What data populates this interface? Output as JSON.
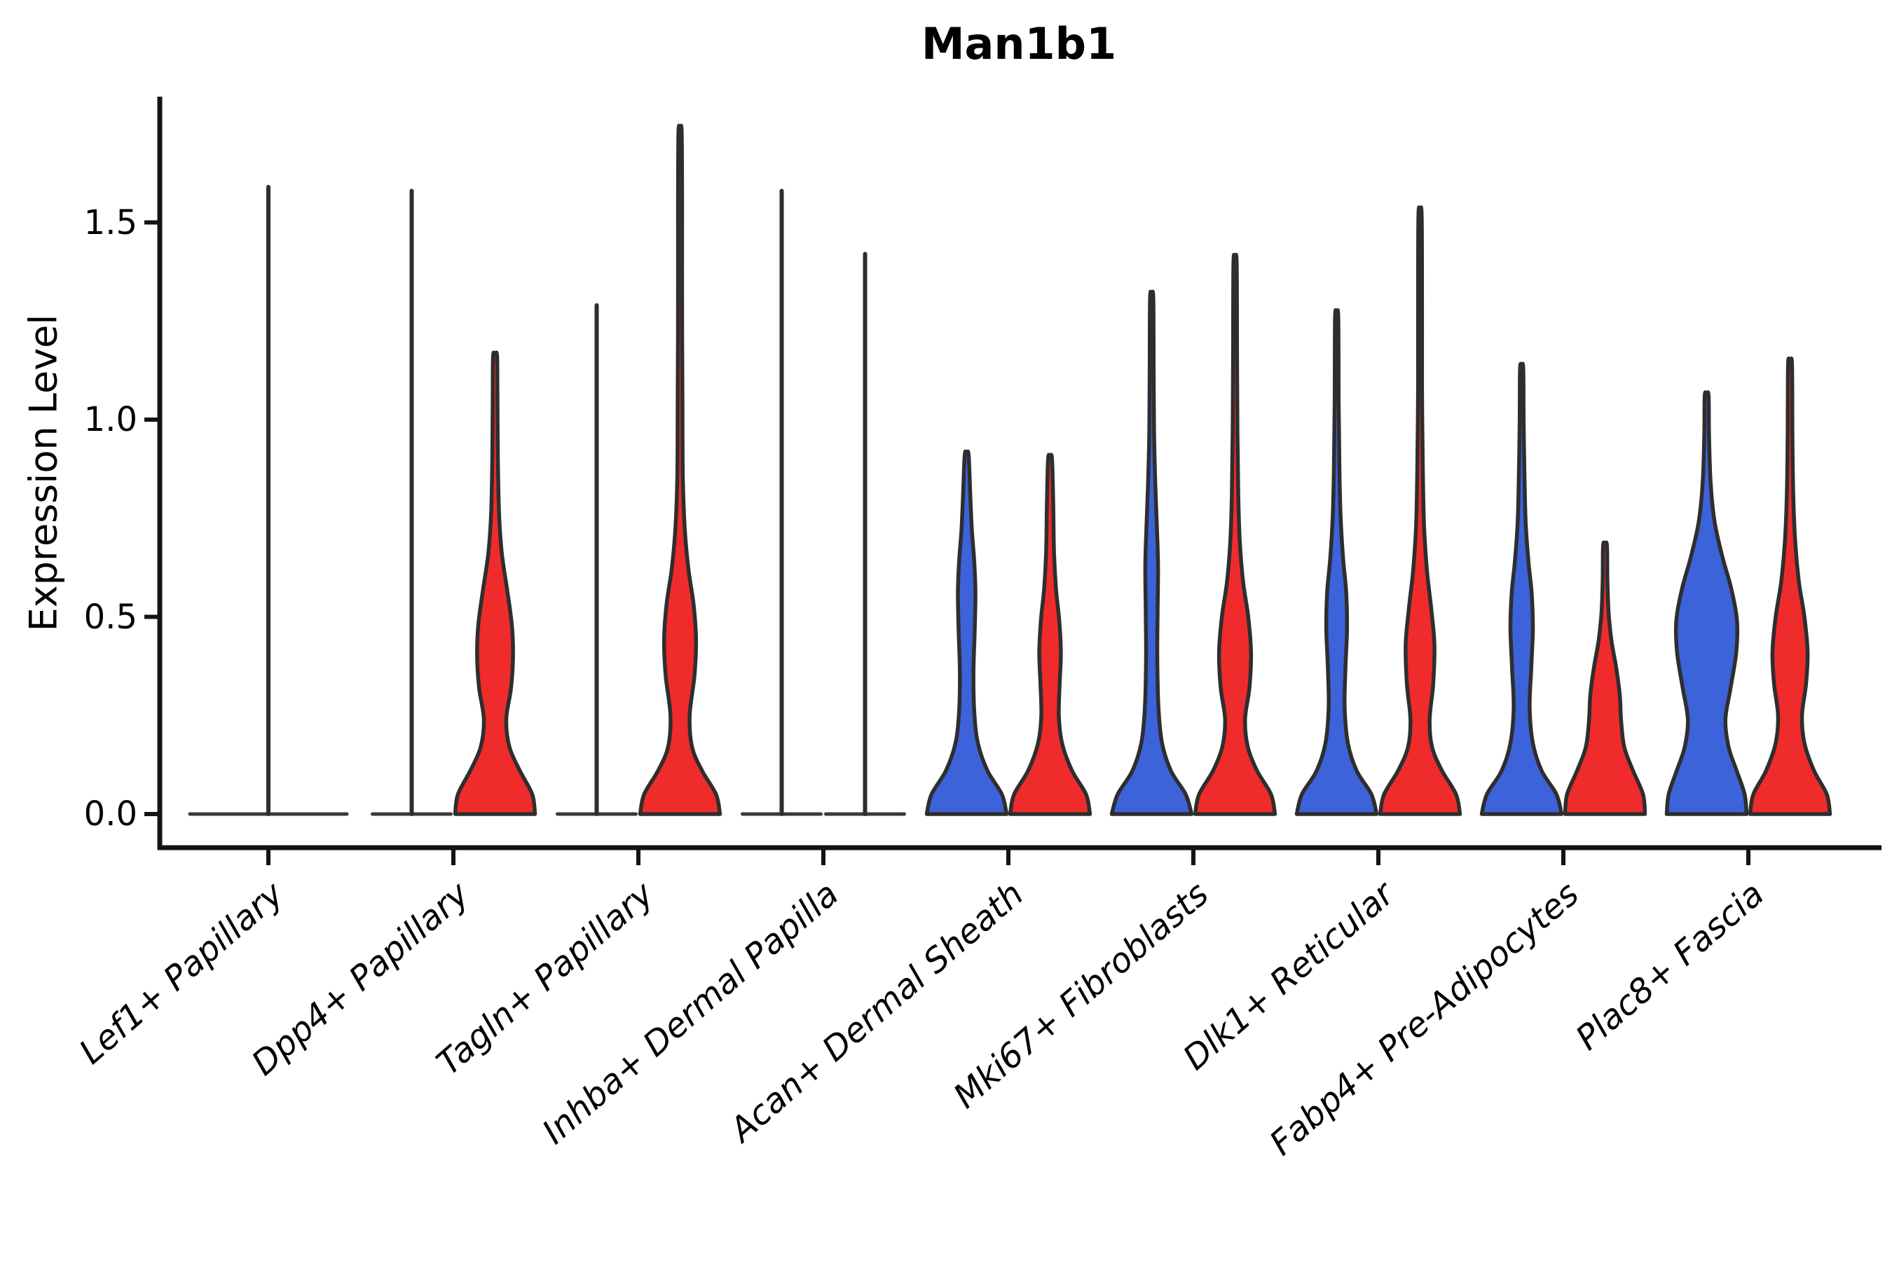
{
  "chart_data": {
    "type": "violin",
    "title": "Man1b1",
    "ylabel": "Expression Level",
    "xlabel": "",
    "yticks": [
      {
        "value": 0.0,
        "label": "0.0"
      },
      {
        "value": 0.5,
        "label": "0.5"
      },
      {
        "value": 1.0,
        "label": "1.0"
      },
      {
        "value": 1.5,
        "label": "1.5"
      }
    ],
    "ylim": [
      -0.09,
      1.82
    ],
    "grid": false,
    "legend": null,
    "xticklabel_rotation_deg": 41,
    "xticklabel_style": "italic",
    "colors": {
      "blue_fill": "#3D63DB",
      "red_fill": "#F02B2B",
      "violin_outline": "#2E2E2E",
      "collapsed_line": "#3A3A3A",
      "axis": "#141414",
      "text": "#000000",
      "background": "#ffffff"
    },
    "groups": [
      {
        "id": "blue",
        "color_key": "blue_fill"
      },
      {
        "id": "red",
        "color_key": "red_fill"
      }
    ],
    "categories": [
      {
        "label": "Lef1+ Papillary",
        "violins": [
          {
            "group": "none",
            "side": "center",
            "collapsed": true,
            "top": 1.59
          }
        ]
      },
      {
        "label": "Dpp4+ Papillary",
        "violins": [
          {
            "group": "blue",
            "side": "left",
            "collapsed": true,
            "top": 1.58
          },
          {
            "group": "red",
            "side": "right",
            "collapsed": false,
            "top": 1.16,
            "profile": [
              [
                0,
                1
              ],
              [
                0.05,
                0.93
              ],
              [
                0.11,
                0.62
              ],
              [
                0.17,
                0.36
              ],
              [
                0.24,
                0.28
              ],
              [
                0.32,
                0.4
              ],
              [
                0.4,
                0.45
              ],
              [
                0.48,
                0.42
              ],
              [
                0.57,
                0.3
              ],
              [
                0.66,
                0.17
              ],
              [
                0.76,
                0.1
              ],
              [
                0.9,
                0.07
              ],
              [
                1.05,
                0.06
              ],
              [
                1.16,
                0.05
              ]
            ]
          }
        ]
      },
      {
        "label": "Tagln+ Papillary",
        "violins": [
          {
            "group": "blue",
            "side": "left",
            "collapsed": true,
            "top": 1.29
          },
          {
            "group": "red",
            "side": "right",
            "collapsed": false,
            "top": 1.73,
            "profile": [
              [
                0,
                1
              ],
              [
                0.05,
                0.9
              ],
              [
                0.11,
                0.55
              ],
              [
                0.17,
                0.3
              ],
              [
                0.25,
                0.24
              ],
              [
                0.35,
                0.36
              ],
              [
                0.44,
                0.4
              ],
              [
                0.53,
                0.34
              ],
              [
                0.62,
                0.21
              ],
              [
                0.72,
                0.12
              ],
              [
                0.85,
                0.07
              ],
              [
                1.05,
                0.06
              ],
              [
                1.3,
                0.05
              ],
              [
                1.55,
                0.05
              ],
              [
                1.73,
                0.04
              ]
            ]
          }
        ]
      },
      {
        "label": "Inhba+ Dermal Papilla",
        "violins": [
          {
            "group": "blue",
            "side": "left",
            "collapsed": true,
            "top": 1.58
          },
          {
            "group": "red",
            "side": "right",
            "collapsed": true,
            "top": 1.42
          }
        ]
      },
      {
        "label": "Acan+ Dermal Sheath",
        "violins": [
          {
            "group": "blue",
            "side": "left",
            "collapsed": false,
            "top": 0.91,
            "profile": [
              [
                0,
                1
              ],
              [
                0.05,
                0.88
              ],
              [
                0.11,
                0.52
              ],
              [
                0.18,
                0.28
              ],
              [
                0.26,
                0.19
              ],
              [
                0.36,
                0.17
              ],
              [
                0.46,
                0.2
              ],
              [
                0.56,
                0.22
              ],
              [
                0.64,
                0.19
              ],
              [
                0.72,
                0.13
              ],
              [
                0.81,
                0.09
              ],
              [
                0.91,
                0.05
              ]
            ]
          },
          {
            "group": "red",
            "side": "right",
            "collapsed": false,
            "top": 0.9,
            "profile": [
              [
                0,
                1
              ],
              [
                0.05,
                0.9
              ],
              [
                0.11,
                0.55
              ],
              [
                0.18,
                0.3
              ],
              [
                0.25,
                0.22
              ],
              [
                0.33,
                0.24
              ],
              [
                0.41,
                0.27
              ],
              [
                0.49,
                0.23
              ],
              [
                0.57,
                0.15
              ],
              [
                0.66,
                0.1
              ],
              [
                0.78,
                0.08
              ],
              [
                0.9,
                0.05
              ]
            ]
          }
        ]
      },
      {
        "label": "Mki67+ Fibroblasts",
        "violins": [
          {
            "group": "blue",
            "side": "left",
            "collapsed": false,
            "top": 1.31,
            "profile": [
              [
                0,
                1
              ],
              [
                0.05,
                0.85
              ],
              [
                0.11,
                0.48
              ],
              [
                0.18,
                0.26
              ],
              [
                0.27,
                0.17
              ],
              [
                0.4,
                0.14
              ],
              [
                0.52,
                0.15
              ],
              [
                0.63,
                0.16
              ],
              [
                0.73,
                0.13
              ],
              [
                0.84,
                0.09
              ],
              [
                0.97,
                0.06
              ],
              [
                1.14,
                0.05
              ],
              [
                1.31,
                0.04
              ]
            ]
          },
          {
            "group": "red",
            "side": "right",
            "collapsed": false,
            "top": 1.4,
            "profile": [
              [
                0,
                1
              ],
              [
                0.05,
                0.9
              ],
              [
                0.11,
                0.55
              ],
              [
                0.17,
                0.32
              ],
              [
                0.24,
                0.25
              ],
              [
                0.32,
                0.36
              ],
              [
                0.41,
                0.4
              ],
              [
                0.5,
                0.33
              ],
              [
                0.59,
                0.2
              ],
              [
                0.69,
                0.12
              ],
              [
                0.81,
                0.08
              ],
              [
                0.97,
                0.06
              ],
              [
                1.18,
                0.05
              ],
              [
                1.4,
                0.04
              ]
            ]
          }
        ]
      },
      {
        "label": "Dlk1+ Reticular",
        "violins": [
          {
            "group": "blue",
            "side": "left",
            "collapsed": false,
            "top": 1.26,
            "profile": [
              [
                0,
                1
              ],
              [
                0.05,
                0.87
              ],
              [
                0.11,
                0.5
              ],
              [
                0.18,
                0.28
              ],
              [
                0.27,
                0.2
              ],
              [
                0.37,
                0.22
              ],
              [
                0.47,
                0.26
              ],
              [
                0.56,
                0.24
              ],
              [
                0.65,
                0.16
              ],
              [
                0.75,
                0.1
              ],
              [
                0.87,
                0.07
              ],
              [
                1.05,
                0.05
              ],
              [
                1.26,
                0.04
              ]
            ]
          },
          {
            "group": "red",
            "side": "right",
            "collapsed": false,
            "top": 1.52,
            "profile": [
              [
                0,
                1
              ],
              [
                0.05,
                0.9
              ],
              [
                0.11,
                0.55
              ],
              [
                0.17,
                0.3
              ],
              [
                0.24,
                0.24
              ],
              [
                0.33,
                0.33
              ],
              [
                0.43,
                0.36
              ],
              [
                0.52,
                0.28
              ],
              [
                0.62,
                0.17
              ],
              [
                0.73,
                0.1
              ],
              [
                0.87,
                0.07
              ],
              [
                1.08,
                0.05
              ],
              [
                1.3,
                0.05
              ],
              [
                1.52,
                0.04
              ]
            ]
          }
        ]
      },
      {
        "label": "Fabp4+ Pre-Adipocytes",
        "violins": [
          {
            "group": "blue",
            "side": "left",
            "collapsed": false,
            "top": 1.13,
            "profile": [
              [
                0,
                1
              ],
              [
                0.05,
                0.87
              ],
              [
                0.11,
                0.5
              ],
              [
                0.18,
                0.28
              ],
              [
                0.27,
                0.2
              ],
              [
                0.37,
                0.24
              ],
              [
                0.47,
                0.28
              ],
              [
                0.56,
                0.25
              ],
              [
                0.64,
                0.17
              ],
              [
                0.74,
                0.1
              ],
              [
                0.86,
                0.07
              ],
              [
                1.0,
                0.05
              ],
              [
                1.13,
                0.04
              ]
            ]
          },
          {
            "group": "red",
            "side": "right",
            "collapsed": false,
            "top": 0.68,
            "profile": [
              [
                0,
                1
              ],
              [
                0.05,
                0.95
              ],
              [
                0.11,
                0.7
              ],
              [
                0.17,
                0.48
              ],
              [
                0.24,
                0.4
              ],
              [
                0.3,
                0.37
              ],
              [
                0.37,
                0.28
              ],
              [
                0.44,
                0.16
              ],
              [
                0.51,
                0.09
              ],
              [
                0.59,
                0.06
              ],
              [
                0.68,
                0.05
              ]
            ]
          }
        ]
      },
      {
        "label": "Plac8+ Fascia",
        "violins": [
          {
            "group": "blue",
            "side": "left",
            "collapsed": false,
            "top": 1.06,
            "profile": [
              [
                0,
                1
              ],
              [
                0.05,
                0.95
              ],
              [
                0.11,
                0.75
              ],
              [
                0.17,
                0.55
              ],
              [
                0.24,
                0.47
              ],
              [
                0.32,
                0.6
              ],
              [
                0.41,
                0.74
              ],
              [
                0.49,
                0.76
              ],
              [
                0.57,
                0.62
              ],
              [
                0.65,
                0.4
              ],
              [
                0.74,
                0.2
              ],
              [
                0.84,
                0.1
              ],
              [
                0.96,
                0.06
              ],
              [
                1.06,
                0.05
              ]
            ]
          },
          {
            "group": "red",
            "side": "right",
            "collapsed": false,
            "top": 1.14,
            "profile": [
              [
                0,
                1
              ],
              [
                0.05,
                0.92
              ],
              [
                0.11,
                0.6
              ],
              [
                0.18,
                0.36
              ],
              [
                0.25,
                0.3
              ],
              [
                0.33,
                0.4
              ],
              [
                0.41,
                0.44
              ],
              [
                0.5,
                0.36
              ],
              [
                0.59,
                0.22
              ],
              [
                0.69,
                0.13
              ],
              [
                0.81,
                0.08
              ],
              [
                0.96,
                0.06
              ],
              [
                1.14,
                0.05
              ]
            ]
          }
        ]
      }
    ]
  }
}
